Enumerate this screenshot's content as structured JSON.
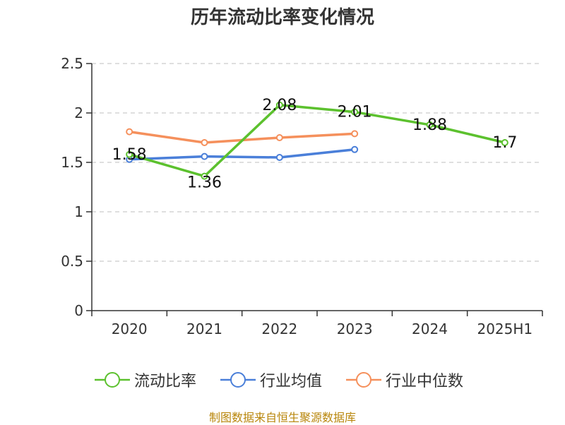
{
  "chart_data": {
    "type": "line",
    "title": "历年流动比率变化情况",
    "categories": [
      "2020",
      "2021",
      "2022",
      "2023",
      "2024",
      "2025H1"
    ],
    "ylim": [
      0,
      2.5
    ],
    "yticks": [
      "0",
      "0.5",
      "1",
      "1.5",
      "2",
      "2.5"
    ],
    "grid": true,
    "legend_position": "bottom",
    "series": [
      {
        "name": "流动比率",
        "color": "#5cc12e",
        "values": [
          1.58,
          1.36,
          2.08,
          2.01,
          1.88,
          1.7
        ],
        "labels": [
          "1.58",
          "1.36",
          "2.08",
          "2.01",
          "1.88",
          "1.7"
        ]
      },
      {
        "name": "行业均值",
        "color": "#4a7fd9",
        "values": [
          1.53,
          1.56,
          1.55,
          1.63,
          null,
          null
        ]
      },
      {
        "name": "行业中位数",
        "color": "#f5905c",
        "values": [
          1.81,
          1.7,
          1.75,
          1.79,
          null,
          null
        ]
      }
    ]
  },
  "source": "制图数据来自恒生聚源数据库"
}
